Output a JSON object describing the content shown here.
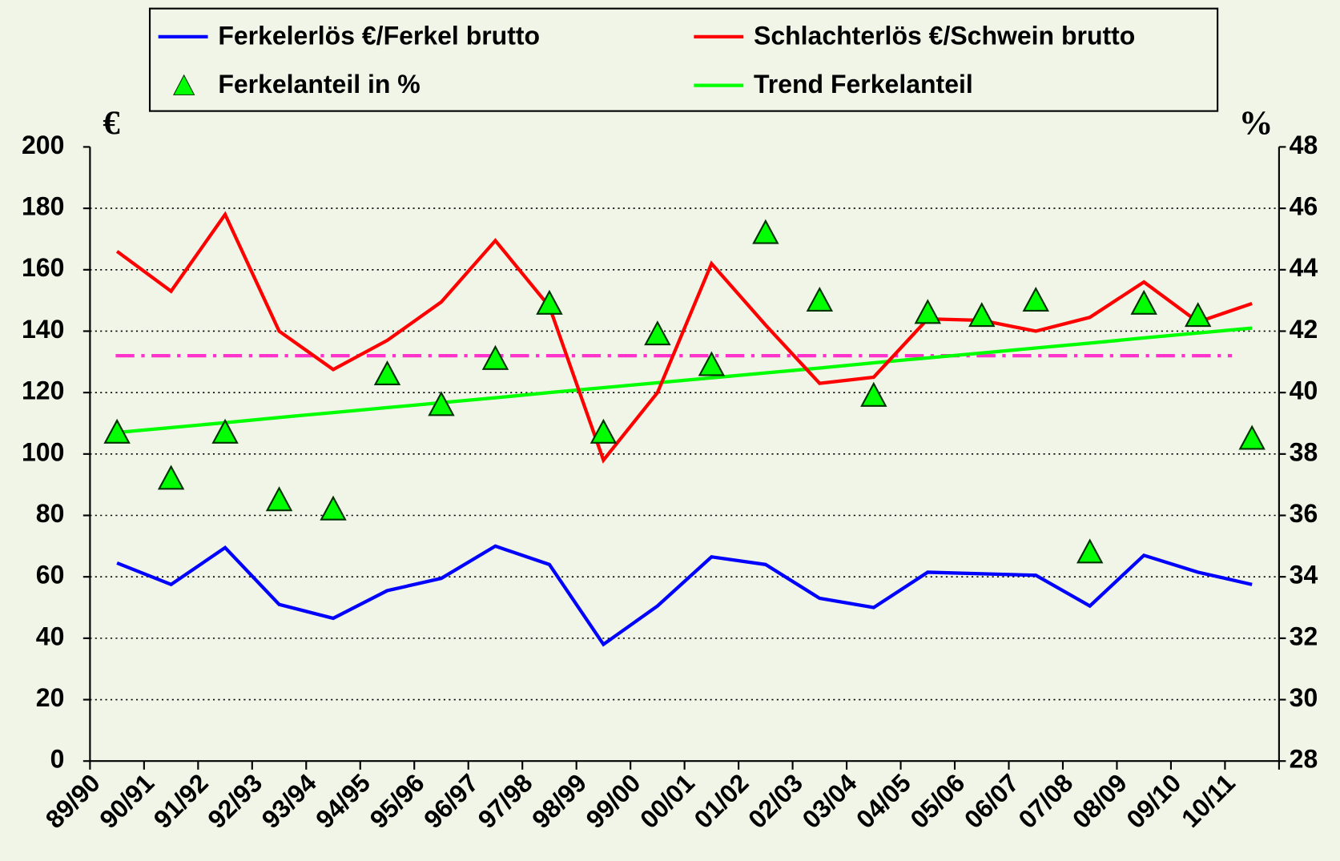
{
  "chart_data": {
    "type": "line",
    "y_unit": "€",
    "y2_unit": "%",
    "categories": [
      "89/90",
      "90/91",
      "91/92",
      "92/93",
      "93/94",
      "94/95",
      "95/96",
      "96/97",
      "97/98",
      "98/99",
      "99/00",
      "00/01",
      "01/02",
      "02/03",
      "03/04",
      "04/05",
      "05/06",
      "06/07",
      "07/08",
      "08/09",
      "09/10",
      "10/11"
    ],
    "series": [
      {
        "name": "Ferkelerlös €/Ferkel brutto",
        "color": "#0000ff",
        "marker": "line",
        "values": [
          64.5,
          57.5,
          69.5,
          51,
          46.5,
          55.5,
          59.5,
          70,
          64,
          38,
          50.5,
          66.5,
          64,
          53,
          50,
          61.5,
          61,
          60.5,
          50.5,
          67,
          61.5,
          57.5
        ]
      },
      {
        "name": "Schlachterlös €/Schwein brutto",
        "color": "#ff0000",
        "marker": "line",
        "values": [
          166,
          153,
          178,
          140,
          127.5,
          137,
          149.5,
          169.5,
          148,
          98,
          120,
          162,
          142,
          123,
          125,
          144,
          143.5,
          140,
          144.5,
          156,
          143,
          149
        ]
      },
      {
        "name": "Ferkelanteil in %",
        "color": "#00ff00",
        "marker": "triangle",
        "axis": "y2",
        "values": [
          38.7,
          37.2,
          38.7,
          36.5,
          36.2,
          40.6,
          39.6,
          41.1,
          42.9,
          38.7,
          41.9,
          40.9,
          45.2,
          43.0,
          39.9,
          42.6,
          42.5,
          43.0,
          34.8,
          42.9,
          42.5,
          38.5
        ]
      },
      {
        "name": "Trend Ferkelanteil",
        "color": "#00ff00",
        "marker": "line",
        "axis": "y2",
        "values": [
          38.7,
          38.86,
          39.02,
          39.19,
          39.35,
          39.51,
          39.67,
          39.83,
          40.0,
          40.16,
          40.32,
          40.48,
          40.64,
          40.8,
          40.97,
          41.13,
          41.29,
          41.45,
          41.61,
          41.78,
          41.94,
          42.1
        ]
      }
    ],
    "reference_line": {
      "value": 132,
      "color": "#ff33cc"
    },
    "ylim": [
      0,
      200
    ],
    "yticks": [
      0,
      20,
      40,
      60,
      80,
      100,
      120,
      140,
      160,
      180,
      200
    ],
    "y2lim": [
      28,
      48
    ],
    "y2ticks": [
      28,
      30,
      32,
      34,
      36,
      38,
      40,
      42,
      44,
      46,
      48
    ],
    "grid": true
  }
}
